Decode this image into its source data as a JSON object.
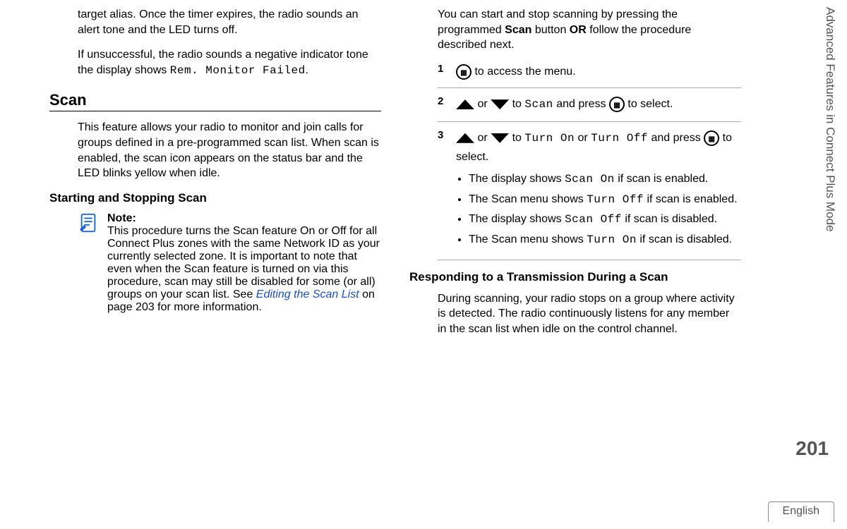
{
  "side_tab": "Advanced Features in Connect Plus Mode",
  "page_number": "201",
  "language": "English",
  "left": {
    "para1a": "target alias. Once the timer expires, the radio sounds an alert tone and the LED turns off.",
    "para1b_pre": "If unsuccessful, the radio sounds a negative indicator tone the display shows ",
    "para1b_mono": "Rem. Monitor Failed",
    "para1b_post": ".",
    "scan_heading": "Scan",
    "scan_intro": "This feature allows your radio to monitor and join calls for groups defined in a pre-programmed scan list. When scan is enabled, the scan icon appears on the status bar and the LED blinks yellow when idle.",
    "start_stop_heading": "Starting and Stopping Scan",
    "note_label": "Note:",
    "note_body_pre": "This procedure turns the Scan feature On or Off for all Connect Plus zones with the same Network ID as your currently selected zone. It is important to note that even when the Scan feature is turned on via this procedure, scan may still be disabled for some (or all) groups on your scan list. See ",
    "note_link": "Editing the Scan List",
    "note_body_post": " on page 203 for more information."
  },
  "right": {
    "intro_pre": "You can start and stop scanning by pressing the programmed ",
    "intro_b1": "Scan",
    "intro_mid": " button ",
    "intro_b2": "OR",
    "intro_post": " follow the procedure described next.",
    "step1_num": "1",
    "step1_text": " to access the menu.",
    "step2_num": "2",
    "step2_or": " or ",
    "step2_to": " to ",
    "step2_scan": "Scan",
    "step2_press": " and press ",
    "step2_select": " to select.",
    "step3_num": "3",
    "step3_or": " or ",
    "step3_to": " to ",
    "step3_on": "Turn On",
    "step3_mid_or": " or ",
    "step3_off": "Turn Off",
    "step3_press": " and press ",
    "step3_select": " to select.",
    "bullets": [
      {
        "pre": "The display shows ",
        "mono": "Scan On",
        "post": " if scan is enabled."
      },
      {
        "pre": "The Scan menu shows ",
        "mono": "Turn Off",
        "post": " if scan is enabled."
      },
      {
        "pre": "The display shows ",
        "mono": "Scan Off",
        "post": " if scan is disabled."
      },
      {
        "pre": "The Scan menu shows ",
        "mono": "Turn On",
        "post": " if scan is disabled."
      }
    ],
    "respond_heading": "Responding to a Transmission During a Scan",
    "respond_body": "During scanning, your radio stops on a group where activity is detected. The radio continuously listens for any member in the scan list when idle on the control channel."
  }
}
